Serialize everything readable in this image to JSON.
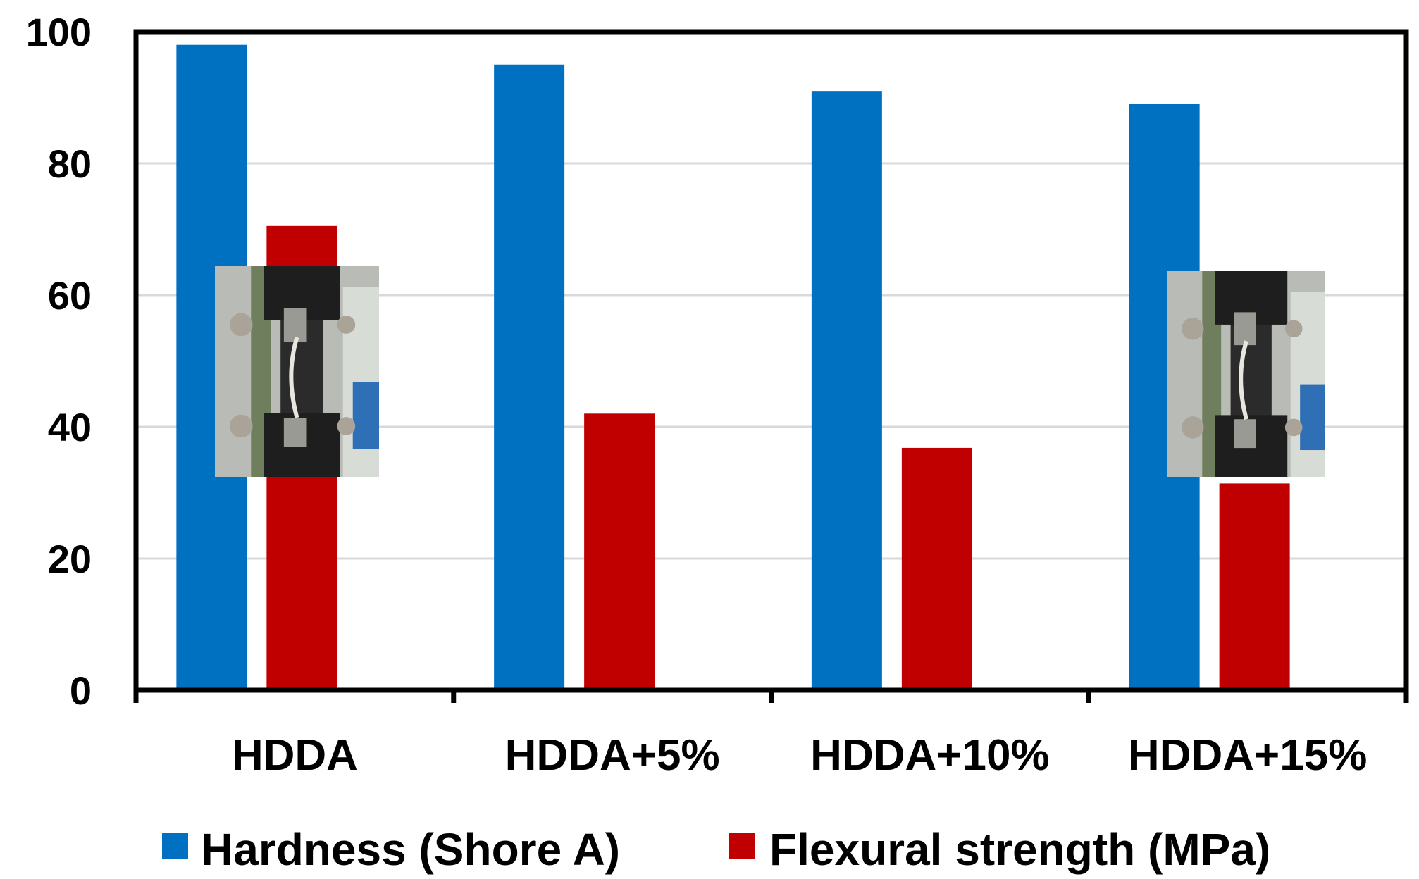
{
  "chart_data": {
    "type": "bar",
    "categories": [
      "HDDA",
      "HDDA+5%",
      "HDDA+10%",
      "HDDA+15%"
    ],
    "series": [
      {
        "name": "Hardness (Shore A)",
        "color": "#0070c0",
        "values": [
          98,
          95,
          91,
          89
        ]
      },
      {
        "name": "Flexural strength (MPa)",
        "color": "#c00000",
        "values": [
          70.5,
          42,
          36.8,
          31.4
        ]
      }
    ],
    "ylim": [
      0,
      100
    ],
    "yticks": [
      0,
      20,
      40,
      60,
      80,
      100
    ],
    "grid": true,
    "legend": "bottom",
    "insets": [
      {
        "category": "HDDA",
        "icon": "flexural-test-photo"
      },
      {
        "category": "HDDA+15%",
        "icon": "flexural-test-photo"
      }
    ]
  }
}
